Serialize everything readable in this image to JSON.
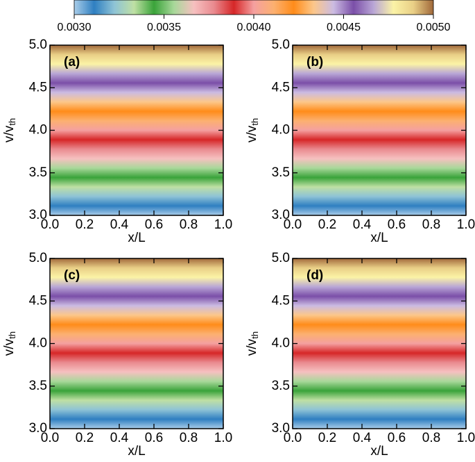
{
  "colorbar": {
    "colors": [
      "#a9cde9",
      "#2f7fc1",
      "#8ec3d6",
      "#bfe0a4",
      "#3aa33a",
      "#a8d89a",
      "#f6c0c0",
      "#e98a8f",
      "#d62728",
      "#f4a0a0",
      "#fcb070",
      "#ff8c1a",
      "#fcc78a",
      "#cbbbe2",
      "#7b4fa8",
      "#b9a6d6",
      "#fbf3a6",
      "#e9cf86",
      "#a0683a"
    ],
    "clim": [
      0.003,
      0.005
    ],
    "ticks": [
      {
        "value": 0.003,
        "label": "0.0030"
      },
      {
        "value": 0.0035,
        "label": "0.0035"
      },
      {
        "value": 0.004,
        "label": "0.0040"
      },
      {
        "value": 0.0045,
        "label": "0.0045"
      },
      {
        "value": 0.005,
        "label": "0.0050"
      }
    ]
  },
  "chart_data": [
    {
      "type": "heatmap",
      "panel_label": "(a)",
      "xlabel": "x/L",
      "ylabel": "v/v",
      "ylabel_subscript": "th",
      "xlim": [
        0,
        1
      ],
      "ylim": [
        3,
        5
      ],
      "xticks": [
        {
          "value": 0,
          "label": "0.0"
        },
        0.2,
        0.4,
        0.6,
        0.8,
        {
          "value": 1,
          "label": "1.0"
        }
      ],
      "yticks": [
        {
          "value": 3,
          "label": "3.0"
        },
        3.5,
        {
          "value": 4,
          "label": "4.0"
        },
        4.5,
        {
          "value": 5,
          "label": "5.0"
        }
      ]
    },
    {
      "type": "heatmap",
      "panel_label": "(b)",
      "xlabel": "x/L",
      "ylabel": "v/v",
      "ylabel_subscript": "th",
      "xlim": [
        0,
        1
      ],
      "ylim": [
        3,
        5
      ],
      "xticks": [
        {
          "value": 0,
          "label": "0.0"
        },
        0.2,
        0.4,
        0.6,
        0.8,
        {
          "value": 1,
          "label": "1.0"
        }
      ],
      "yticks": [
        {
          "value": 3,
          "label": "3.0"
        },
        3.5,
        {
          "value": 4,
          "label": "4.0"
        },
        4.5,
        {
          "value": 5,
          "label": "5.0"
        }
      ]
    },
    {
      "type": "heatmap",
      "panel_label": "(c)",
      "xlabel": "x/L",
      "ylabel": "v/v",
      "ylabel_subscript": "th",
      "xlim": [
        0,
        1
      ],
      "ylim": [
        3,
        5
      ],
      "xticks": [
        {
          "value": 0,
          "label": "0.0"
        },
        0.2,
        0.4,
        0.6,
        0.8,
        {
          "value": 1,
          "label": "1.0"
        }
      ],
      "yticks": [
        {
          "value": 3,
          "label": "3.0"
        },
        3.5,
        {
          "value": 4,
          "label": "4.0"
        },
        4.5,
        {
          "value": 5,
          "label": "5.0"
        }
      ]
    },
    {
      "type": "heatmap",
      "panel_label": "(d)",
      "xlabel": "x/L",
      "ylabel": "v/v",
      "ylabel_subscript": "th",
      "xlim": [
        0,
        1
      ],
      "ylim": [
        3,
        5
      ],
      "xticks": [
        {
          "value": 0,
          "label": "0.0"
        },
        0.2,
        0.4,
        0.6,
        0.8,
        {
          "value": 1,
          "label": "1.0"
        }
      ],
      "yticks": [
        {
          "value": 3,
          "label": "3.0"
        },
        3.5,
        {
          "value": 4,
          "label": "4.0"
        },
        4.5,
        {
          "value": 5,
          "label": "5.0"
        }
      ]
    }
  ]
}
